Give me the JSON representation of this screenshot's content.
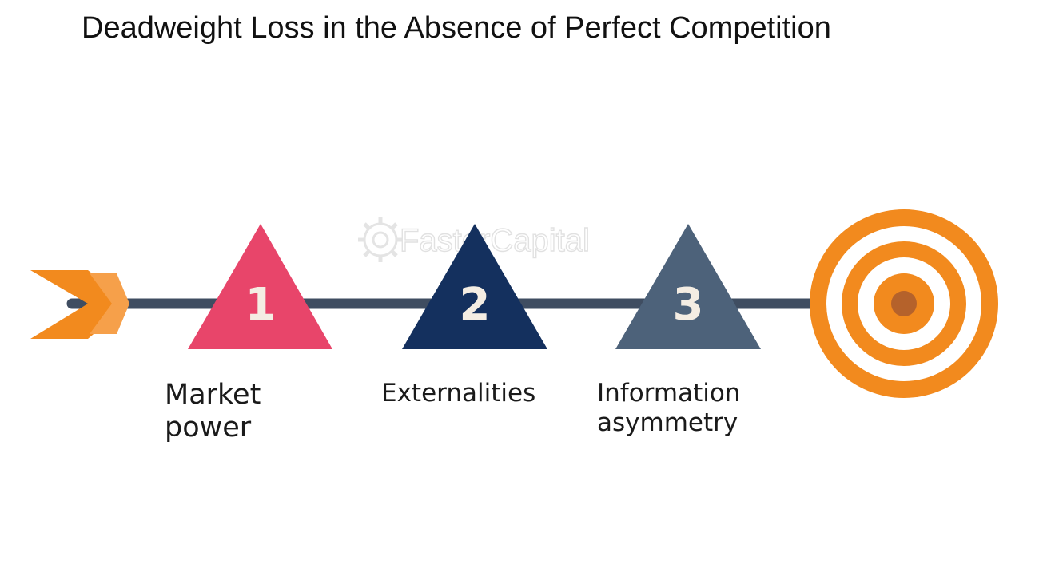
{
  "title": "Deadweight Loss in the Absence of Perfect Competition",
  "watermark": "FasterCapital",
  "steps": [
    {
      "number": "1",
      "label_line1": "Market",
      "label_line2": "power",
      "color": "#e8456a"
    },
    {
      "number": "2",
      "label_line1": "Externalities",
      "label_line2": "",
      "color": "#14305e"
    },
    {
      "number": "3",
      "label_line1": "Information",
      "label_line2": "asymmetry",
      "color": "#4d627a"
    }
  ],
  "colors": {
    "timeline": "#3f4d61",
    "arrow": "#f28a1e",
    "target_orange": "#f28a1e",
    "target_center": "#b5622b",
    "number_text": "#f4ede3"
  },
  "icons": {
    "start": "arrow-fletching-icon",
    "end": "target-bullseye-icon",
    "watermark": "gear-logo-icon"
  }
}
